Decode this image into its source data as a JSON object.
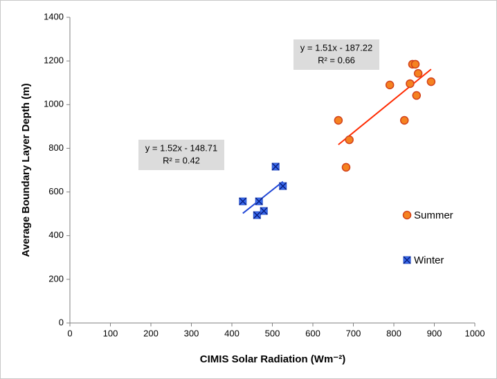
{
  "chart_data": {
    "type": "scatter",
    "x_label": "CIMIS Solar Radiation  (Wm⁻²)",
    "y_label": "Average  Boundary Layer Depth  (m)",
    "xlim": [
      0,
      1000
    ],
    "ylim": [
      0,
      1400
    ],
    "xticks": [
      0,
      100,
      200,
      300,
      400,
      500,
      600,
      700,
      800,
      900,
      1000
    ],
    "yticks": [
      0,
      200,
      400,
      600,
      800,
      1000,
      1200,
      1400
    ],
    "legend": "right",
    "series": [
      {
        "name": "Summer",
        "color": "#f58220",
        "marker": "circle",
        "trendline": [
          "y = 1.51x - 187.22",
          "R² = 0.66"
        ],
        "trend_color": "#ff2a00",
        "x": [
          663,
          690,
          682,
          790,
          826,
          840,
          846,
          853,
          860,
          856,
          892
        ],
        "values": [
          928,
          839,
          713,
          1090,
          928,
          1096,
          1185,
          1185,
          1143,
          1042,
          1105
        ]
      },
      {
        "name": "Winter",
        "color": "#3a6cf0",
        "marker": "xsquare",
        "trendline": [
          "y = 1.52x - 148.71",
          "R² = 0.42"
        ],
        "trend_color": "#1f45d6",
        "x": [
          427,
          462,
          467,
          479,
          508,
          526
        ],
        "values": [
          557,
          494,
          557,
          513,
          716,
          627
        ]
      }
    ]
  }
}
